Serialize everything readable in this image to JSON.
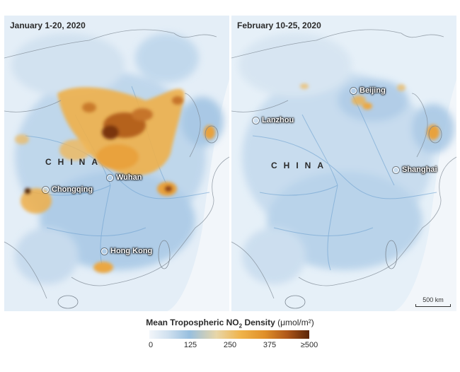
{
  "panels": [
    {
      "date_label": "January 1-20, 2020",
      "country_label": "CHINA",
      "cities": [
        "Chongqing",
        "Wuhan",
        "Hong Kong"
      ]
    },
    {
      "date_label": "February 10-25, 2020",
      "country_label": "CHINA",
      "cities": [
        "Beijing",
        "Lanzhou",
        "Shanghai"
      ],
      "scale_label": "500 km"
    }
  ],
  "legend": {
    "title_main": "Mean Tropospheric NO",
    "title_sub": "2",
    "title_density": "Density",
    "title_unit": "(μmol/m²)",
    "ticks": [
      "0",
      "125",
      "250",
      "375",
      "≥500"
    ]
  },
  "colors": {
    "low": "#cfe0ef",
    "mid": "#98bfdf",
    "high": "#f0b44a",
    "max": "#5a2508"
  }
}
